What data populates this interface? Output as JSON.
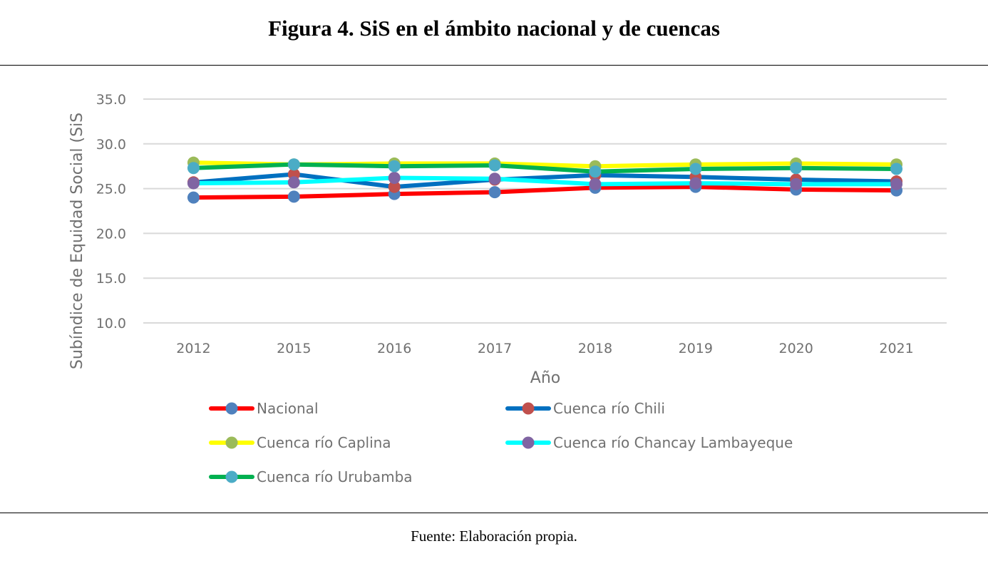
{
  "figure": {
    "title": "Figura 4. SiS en el ámbito nacional y de cuencas",
    "source": "Fuente: Elaboración propia."
  },
  "chart_data": {
    "type": "line",
    "title": "Figura 4. SiS en el ámbito nacional y de cuencas",
    "xlabel": "Año",
    "ylabel": "Subíndice de Equidad Social (SiS",
    "categories": [
      "2012",
      "2015",
      "2016",
      "2017",
      "2018",
      "2019",
      "2020",
      "2021"
    ],
    "ylim": [
      10.0,
      35.0
    ],
    "yticks": [
      "10.0",
      "15.0",
      "20.0",
      "25.0",
      "30.0",
      "35.0"
    ],
    "grid": true,
    "legend_position": "bottom",
    "series": [
      {
        "name": "Nacional",
        "line_color": "#FF0000",
        "marker_color": "#4F81BD",
        "values": [
          24.0,
          24.1,
          24.4,
          24.6,
          25.1,
          25.2,
          24.9,
          24.8
        ]
      },
      {
        "name": "Cuenca río Chili",
        "line_color": "#0070C0",
        "marker_color": "#C0504D",
        "values": [
          25.7,
          26.6,
          25.2,
          26.0,
          26.5,
          26.3,
          26.0,
          25.8
        ]
      },
      {
        "name": "Cuenca río Caplina",
        "line_color": "#FFFF00",
        "marker_color": "#9BBB59",
        "values": [
          27.9,
          27.7,
          27.8,
          27.8,
          27.5,
          27.7,
          27.8,
          27.7
        ]
      },
      {
        "name": "Cuenca río Chancay Lambayeque",
        "line_color": "#00FFFF",
        "marker_color": "#8064A2",
        "values": [
          25.6,
          25.7,
          26.2,
          26.1,
          25.5,
          25.6,
          25.5,
          25.5
        ]
      },
      {
        "name": "Cuenca río Urubamba",
        "line_color": "#00B050",
        "marker_color": "#4BACC6",
        "values": [
          27.3,
          27.7,
          27.5,
          27.6,
          26.9,
          27.2,
          27.3,
          27.2
        ]
      }
    ]
  }
}
